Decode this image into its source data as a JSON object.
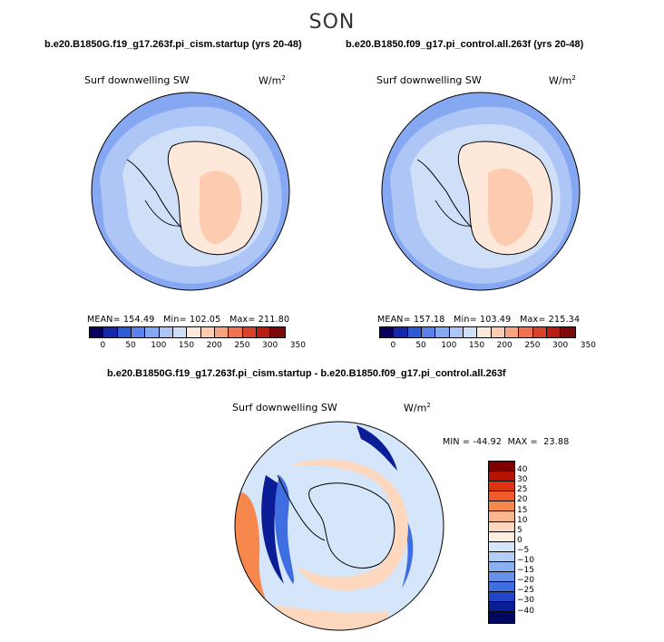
{
  "season": "SON",
  "panels": {
    "left_title": "b.e20.B1850G.f19_g17.263f.pi_cism.startup (yrs 20-48)",
    "right_title": "b.e20.B1850.f09_g17.pi_control.all.263f (yrs 20-48)",
    "diff_title": "b.e20.B1850G.f19_g17.263f.pi_cism.startup - b.e20.B1850.f09_g17.pi_control.all.263f"
  },
  "variable_label": "Surf downwelling SW",
  "units_label": "W/m",
  "units_exponent": "2",
  "left_stats": {
    "mean_label": "MEAN=",
    "mean": "154.49",
    "min_label": "Min=",
    "min": "102.05",
    "max_label": "Max=",
    "max": "211.80"
  },
  "right_stats": {
    "mean_label": "MEAN=",
    "mean": "157.18",
    "min_label": "Min=",
    "min": "103.49",
    "max_label": "Max=",
    "max": "215.34"
  },
  "diff_stats": {
    "min_label": "MIN =",
    "min": "-44.92",
    "max_label": "MAX =",
    "max": "23.88"
  },
  "abs_colorbar": {
    "ticks": [
      "0",
      "50",
      "100",
      "150",
      "200",
      "250",
      "300",
      "350"
    ],
    "colors": [
      "#08005a",
      "#1428a8",
      "#2f5ad6",
      "#5b82ea",
      "#86a8f2",
      "#adc6f6",
      "#cfdff8",
      "#fde8da",
      "#fccbb0",
      "#f8a27f",
      "#ef7251",
      "#d9412a",
      "#b81c12",
      "#7c0808"
    ]
  },
  "diff_colorbar": {
    "labels": [
      "40",
      "30",
      "25",
      "20",
      "15",
      "10",
      "5",
      "0",
      "−5",
      "−10",
      "−15",
      "−20",
      "−25",
      "−30",
      "−40"
    ],
    "colors": [
      "#800000",
      "#b51405",
      "#dd3212",
      "#f15a2b",
      "#f7884d",
      "#fab68e",
      "#fdd8be",
      "#fdeee1",
      "#d6e6fa",
      "#b2cdf6",
      "#8bb0f1",
      "#6690ea",
      "#3f6ee0",
      "#2244c8",
      "#0a1c96",
      "#020860"
    ]
  },
  "map_colors": {
    "ocean_far": "#86a8f2",
    "ocean_mid": "#adc6f6",
    "ocean_near": "#cfdff8",
    "land_warm": "#fde8da",
    "land_hot": "#fccbb0",
    "diff_base": "#d6e6fa",
    "diff_strong_neg": "#0a1c96",
    "diff_neg": "#3f6ee0",
    "diff_pos": "#f7884d",
    "diff_warm": "#fdd8be"
  }
}
